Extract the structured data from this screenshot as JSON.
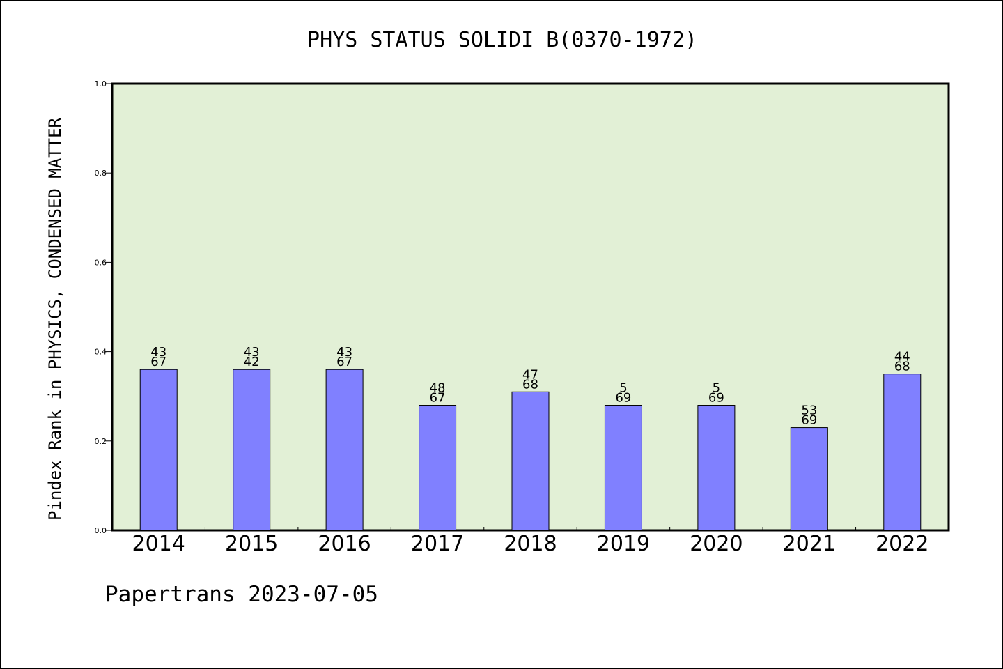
{
  "chart_data": {
    "type": "bar",
    "title": "PHYS STATUS SOLIDI B(0370-1972)",
    "ylabel": "Pindex Rank in PHYSICS, CONDENSED MATTER",
    "xlabel": "",
    "ylim": [
      0,
      1.0
    ],
    "yticks": [
      "0.0",
      "0.2",
      "0.4",
      "0.6",
      "0.8",
      "1.0"
    ],
    "categories": [
      "2014",
      "2015",
      "2016",
      "2017",
      "2018",
      "2019",
      "2020",
      "2021",
      "2022"
    ],
    "values": [
      0.36,
      0.36,
      0.36,
      0.28,
      0.31,
      0.28,
      0.28,
      0.23,
      0.35
    ],
    "bar_labels": [
      {
        "top": "43",
        "bottom": "67"
      },
      {
        "top": "43",
        "bottom": "42"
      },
      {
        "top": "43",
        "bottom": "67"
      },
      {
        "top": "48",
        "bottom": "67"
      },
      {
        "top": "47",
        "bottom": "68"
      },
      {
        "top": "5",
        "bottom": "69"
      },
      {
        "top": "5",
        "bottom": "69"
      },
      {
        "top": "53",
        "bottom": "69"
      },
      {
        "top": "44",
        "bottom": "68"
      }
    ],
    "grid": false,
    "colors": {
      "plot_background": "#e2f0d6",
      "bar_fill": "#8080ff",
      "bar_stroke": "#000000",
      "axis": "#000000"
    }
  },
  "footer": {
    "text": "Papertrans 2023-07-05"
  }
}
